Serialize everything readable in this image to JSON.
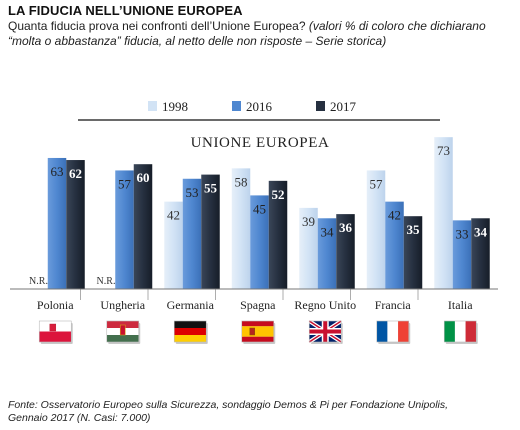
{
  "header": {
    "title": "LA FIDUCIA NELL’UNIONE EUROPEA",
    "subtitle_main": "Quanta fiducia prova nei confronti dell’Unione Europea?",
    "subtitle_note": "(valori % di coloro che dichiarano “molta o abbastanza” fiducia, al netto delle non risposte – Serie storica)"
  },
  "chart_data": {
    "type": "bar",
    "title": "UNIONE EUROPEA",
    "categories": [
      "Polonia",
      "Ungheria",
      "Germania",
      "Spagna",
      "Regno Unito",
      "Francia",
      "Italia"
    ],
    "series": [
      {
        "name": "1998",
        "values": [
          null,
          null,
          42,
          58,
          39,
          57,
          73
        ],
        "color": "#d2e3f5",
        "label_color": "#333333",
        "label_weight": "normal"
      },
      {
        "name": "2016",
        "values": [
          63,
          57,
          53,
          45,
          34,
          42,
          33
        ],
        "color": "#4f87d0",
        "label_color": "#222222",
        "label_weight": "normal"
      },
      {
        "name": "2017",
        "values": [
          62,
          60,
          55,
          52,
          36,
          35,
          34
        ],
        "color": "#263040",
        "label_color": "#ffffff",
        "label_weight": "bold"
      }
    ],
    "missing_label": "N.R.",
    "ylim": [
      0,
      80
    ],
    "grid": false,
    "legend_position": "top",
    "flags": [
      "poland-flag",
      "hungary-flag",
      "germany-flag",
      "spain-flag",
      "uk-flag",
      "france-flag",
      "italy-flag"
    ]
  },
  "footer": {
    "source": "Fonte: Osservatorio Europeo sulla Sicurezza, sondaggio Demos & Pi per Fondazione Unipolis, Gennaio 2017 (N. Casi: 7.000)"
  }
}
